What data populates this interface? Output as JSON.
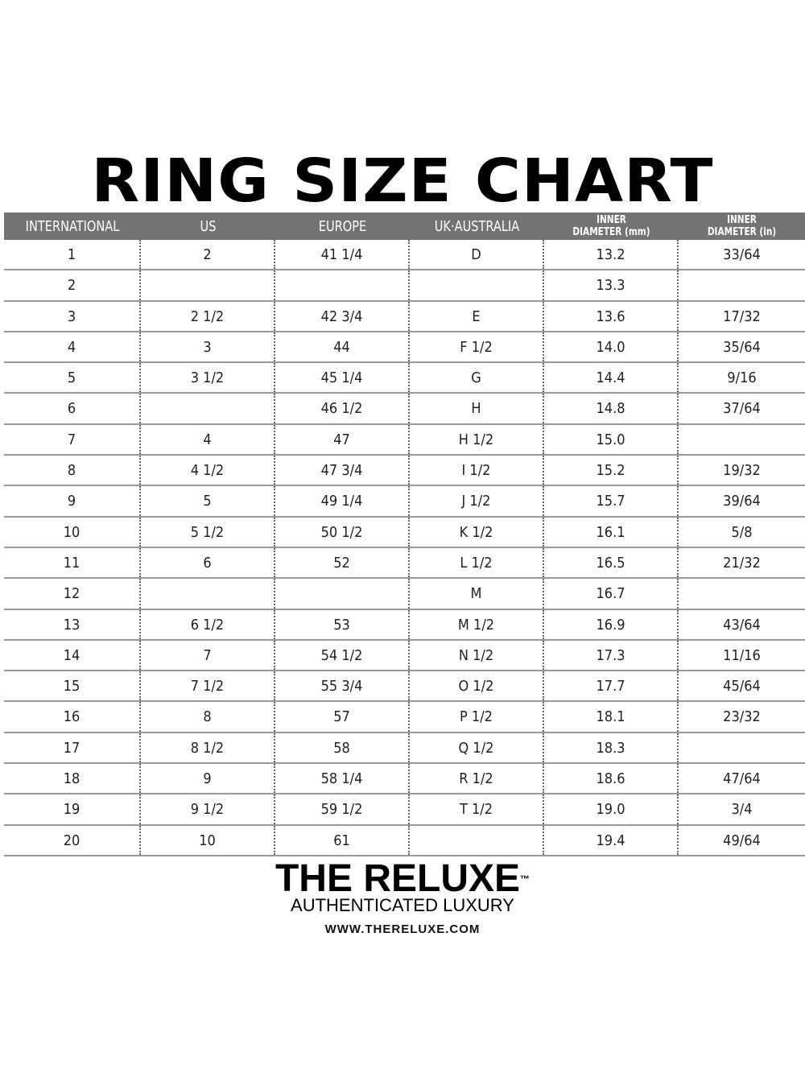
{
  "title": "RING SIZE CHART",
  "columns": [
    {
      "line1": "INTERNATIONAL",
      "line2": ""
    },
    {
      "line1": "US",
      "line2": ""
    },
    {
      "line1": "EUROPE",
      "line2": ""
    },
    {
      "line1": "UK·AUSTRALIA",
      "line2": ""
    },
    {
      "line1": "INNER",
      "line2": "DIAMETER (mm)"
    },
    {
      "line1": "INNER",
      "line2": "DIAMETER (in)"
    }
  ],
  "rows": [
    [
      "1",
      "2",
      "41 1/4",
      "D",
      "13.2",
      "33/64"
    ],
    [
      "2",
      "",
      "",
      "",
      "13.3",
      ""
    ],
    [
      "3",
      "2 1/2",
      "42 3/4",
      "E",
      "13.6",
      "17/32"
    ],
    [
      "4",
      "3",
      "44",
      "F 1/2",
      "14.0",
      "35/64"
    ],
    [
      "5",
      "3 1/2",
      "45 1/4",
      "G",
      "14.4",
      "9/16"
    ],
    [
      "6",
      "",
      "46 1/2",
      "H",
      "14.8",
      "37/64"
    ],
    [
      "7",
      "4",
      "47",
      "H 1/2",
      "15.0",
      ""
    ],
    [
      "8",
      "4 1/2",
      "47 3/4",
      "I 1/2",
      "15.2",
      "19/32"
    ],
    [
      "9",
      "5",
      "49 1/4",
      "J 1/2",
      "15.7",
      "39/64"
    ],
    [
      "10",
      "5 1/2",
      "50 1/2",
      "K 1/2",
      "16.1",
      "5/8"
    ],
    [
      "11",
      "6",
      "52",
      "L 1/2",
      "16.5",
      "21/32"
    ],
    [
      "12",
      "",
      "",
      "M",
      "16.7",
      ""
    ],
    [
      "13",
      "6 1/2",
      "53",
      "M 1/2",
      "16.9",
      "43/64"
    ],
    [
      "14",
      "7",
      "54 1/2",
      "N 1/2",
      "17.3",
      "11/16"
    ],
    [
      "15",
      "7 1/2",
      "55 3/4",
      "O 1/2",
      "17.7",
      "45/64"
    ],
    [
      "16",
      "8",
      "57",
      "P 1/2",
      "18.1",
      "23/32"
    ],
    [
      "17",
      "8 1/2",
      "58",
      "Q 1/2",
      "18.3",
      ""
    ],
    [
      "18",
      "9",
      "58 1/4",
      "R 1/2",
      "18.6",
      "47/64"
    ],
    [
      "19",
      "9 1/2",
      "59 1/2",
      "T 1/2",
      "19.0",
      "3/4"
    ],
    [
      "20",
      "10",
      "61",
      "",
      "19.4",
      "49/64"
    ]
  ],
  "brand": {
    "name": "THE RELUXE",
    "trademark": "™",
    "tagline": "AUTHENTICATED LUXURY",
    "url": "WWW.THERELUXE.COM"
  }
}
